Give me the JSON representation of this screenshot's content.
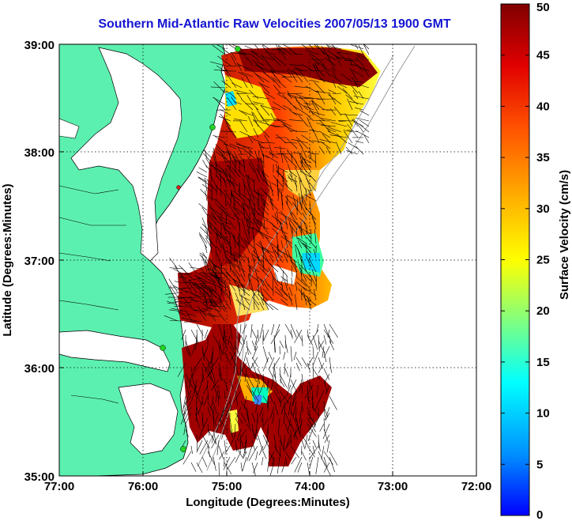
{
  "title": "Southern Mid-Atlantic Raw Velocities 2007/05/13 1900 GMT",
  "xlabel": "Longitude (Degrees:Minutes)",
  "ylabel": "Latitude (Degrees:Minutes)",
  "x_ticks": [
    "77:00",
    "76:00",
    "75:00",
    "74:00",
    "73:00",
    "72:00"
  ],
  "y_ticks": [
    "39:00",
    "38:00",
    "37:00",
    "36:00",
    "35:00"
  ],
  "colorbar": {
    "label": "Surface Velocity (cm/s)",
    "min": 0,
    "max": 50,
    "ticks": [
      "50",
      "45",
      "40",
      "35",
      "30",
      "25",
      "20",
      "15",
      "10",
      "5",
      "0"
    ]
  },
  "colors": {
    "land": "#5cf0b0",
    "title": "#1414d2",
    "station": "#22d422"
  }
}
